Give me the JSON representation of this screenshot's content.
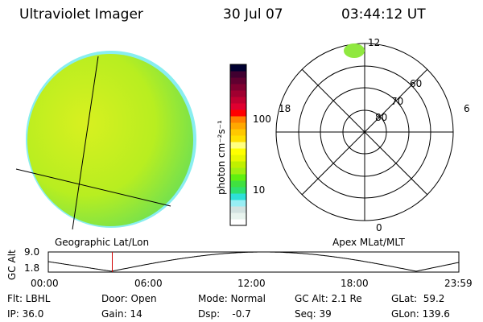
{
  "header": {
    "instrument": "Ultraviolet Imager",
    "date": "30 Jul 07",
    "time": "03:44:12 UT"
  },
  "colorbar": {
    "label": "photon cm⁻²s⁻¹",
    "ticks": [
      "100",
      "10"
    ],
    "colors": [
      "#ffffff",
      "#e8f4ee",
      "#d2e2e0",
      "#98eef4",
      "#2ee0d8",
      "#2ee070",
      "#40e040",
      "#60f010",
      "#a0f010",
      "#c0f000",
      "#e8f800",
      "#ffff00",
      "#ffff80",
      "#ffe000",
      "#ffc800",
      "#ffa800",
      "#ff8000",
      "#ff0000",
      "#e00030",
      "#c00030",
      "#a00030",
      "#800030",
      "#600030",
      "#400030",
      "#000030"
    ]
  },
  "polar": {
    "mlt_labels": [
      "12",
      "18",
      "6",
      "0"
    ],
    "lat_labels": [
      "60",
      "70",
      "80"
    ]
  },
  "left_label": "Geographic Lat/Lon",
  "right_label": "Apex MLat/MLT",
  "altplot": {
    "ylabel": "GC Alt",
    "yticks": [
      "9.0",
      "1.8"
    ],
    "xticks": [
      "00:00",
      "06:00",
      "12:00",
      "18:00",
      "23:59"
    ],
    "current_hours": 3.74
  },
  "info": [
    [
      "Flt: LBHL",
      "IP: 36.0"
    ],
    [
      "Door: Open",
      "Gain: 14"
    ],
    [
      "Mode: Normal",
      "Dsp:    -0.7"
    ],
    [
      "GC Alt: 2.1 Re",
      "Seq: 39"
    ],
    [
      "GLat:  59.2",
      "GLon: 139.6"
    ]
  ]
}
